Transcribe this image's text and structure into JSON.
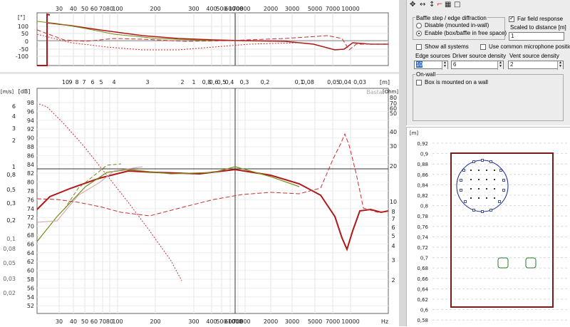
{
  "phase_chart": {
    "ylabel": "[°]",
    "y_ticks": [
      "100",
      "50",
      "0",
      "-50",
      "-100"
    ],
    "x_ticks": [
      "30",
      "40",
      "50",
      "60",
      "70",
      "80",
      "100",
      "200",
      "300",
      "400",
      "500",
      "600",
      "700",
      "800",
      "1000",
      "2000",
      "3000",
      "5000",
      "7000",
      "10000"
    ]
  },
  "spl_chart": {
    "left_unit": "[m/s]",
    "db_unit": "[dB]",
    "ohm_unit": "[Ohm]",
    "m_unit": "[m]",
    "hz_unit": "Hz",
    "badge": "Basta!",
    "db_ticks": [
      "98",
      "96",
      "94",
      "92",
      "90",
      "88",
      "86",
      "84",
      "82",
      "80",
      "78",
      "76",
      "74",
      "72",
      "70",
      "68",
      "66",
      "64",
      "62",
      "60",
      "58",
      "56",
      "54",
      "52"
    ],
    "ms_ticks": [
      "6",
      "4",
      "3",
      "2",
      "1",
      "0,8",
      "0,5",
      "0,3",
      "0,2",
      "0,1",
      "0,08",
      "0,05",
      "0,03",
      "0,02"
    ],
    "ohm_ticks": [
      "80",
      "70",
      "60",
      "50",
      "40",
      "30",
      "20",
      "10",
      "8",
      "7",
      "6",
      "5",
      "4",
      "3",
      "2"
    ],
    "wavelength_ticks": [
      "10",
      "9",
      "8",
      "7",
      "6",
      "5",
      "4",
      "3",
      "2",
      "1",
      "0,8",
      "0,6",
      "0,5",
      "0,4",
      "0,3",
      "0,2",
      "0,1",
      "0,08",
      "0,05",
      "0,04",
      "0,03"
    ],
    "x_ticks": [
      "30",
      "40",
      "50",
      "60",
      "70",
      "80",
      "100",
      "200",
      "300",
      "400",
      "500",
      "600",
      "700",
      "800",
      "1000",
      "2000",
      "3000",
      "5000",
      "7000",
      "10000"
    ]
  },
  "controls": {
    "baffle_group_title": "Baffle step / edge diffraction",
    "radio_disable": "Disable (mounted in-wall)",
    "radio_enable": "Enable (box/baffle in free space)",
    "far_field": "Far field response",
    "scaled_label": "Scaled to distance [m]",
    "scaled_value": "1",
    "show_all": "Show all systems",
    "common_mic": "Use common microphone position",
    "edge_label": "Edge sources",
    "edge_value": "10",
    "driver_label": "Driver source density",
    "driver_value": "6",
    "vent_label": "Vent source density",
    "vent_value": "2",
    "onwall_title": "On-wall",
    "onwall_check": "Box is mounted on a wall"
  },
  "layout": {
    "unit": "[m]",
    "y_ticks": [
      "0,92",
      "0,9",
      "0,88",
      "0,86",
      "0,84",
      "0,82",
      "0,8",
      "0,78",
      "0,76",
      "0,74",
      "0,72",
      "0,7",
      "0,68",
      "0,66",
      "0,64",
      "0,62",
      "0,6",
      "0,58"
    ]
  },
  "colors": {
    "main_curve": "#b01818",
    "olive_curve": "#7a8a1a",
    "accent_dash": "#c83030"
  }
}
